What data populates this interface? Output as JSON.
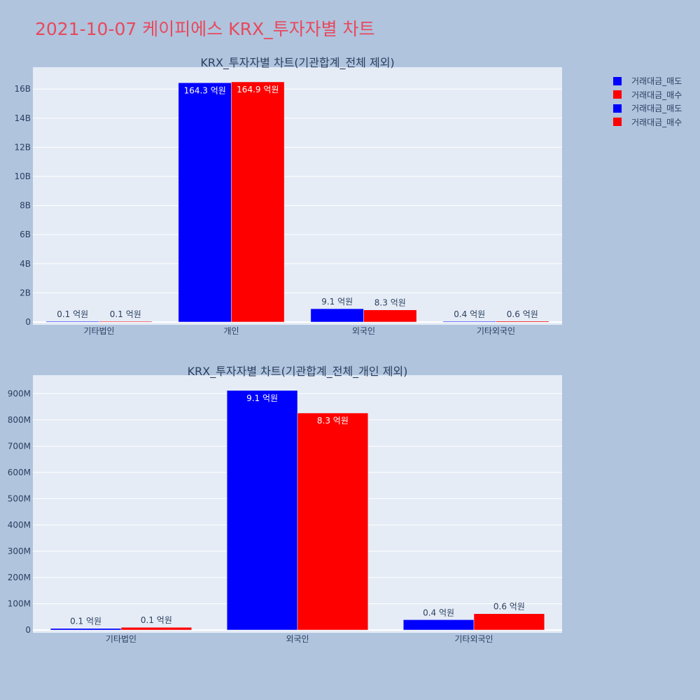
{
  "page": {
    "title": "2021-10-07 케이피에스 KRX_투자자별 차트",
    "background": "#b0c4de",
    "title_color": "#e8495c"
  },
  "legend": {
    "items": [
      {
        "label": "거래대금_매도",
        "color": "#0000ff"
      },
      {
        "label": "거래대금_매수",
        "color": "#ff0000"
      },
      {
        "label": "거래대금_매도",
        "color": "#0000ff"
      },
      {
        "label": "거래대금_매수",
        "color": "#ff0000"
      }
    ]
  },
  "chart_data": [
    {
      "type": "bar",
      "title": "KRX_투자자별 차트(기관합계_전체 제외)",
      "categories": [
        "기타법인",
        "개인",
        "외국인",
        "기타외국인"
      ],
      "series": [
        {
          "name": "거래대금_매도",
          "color": "#0000ff",
          "values": [
            10000000,
            16430000000,
            910000000,
            40000000
          ],
          "labels": [
            "0.1 억원",
            "164.3 억원",
            "9.1 억원",
            "0.4 억원"
          ]
        },
        {
          "name": "거래대금_매수",
          "color": "#ff0000",
          "values": [
            10000000,
            16490000000,
            830000000,
            60000000
          ],
          "labels": [
            "0.1 억원",
            "164.9 억원",
            "8.3 억원",
            "0.6 억원"
          ]
        }
      ],
      "ylim": [
        0,
        17500000000
      ],
      "yticks": [
        0,
        2000000000,
        4000000000,
        6000000000,
        8000000000,
        10000000000,
        12000000000,
        14000000000,
        16000000000
      ],
      "ytick_labels": [
        "0",
        "2B",
        "4B",
        "6B",
        "8B",
        "10B",
        "12B",
        "14B",
        "16B"
      ],
      "grid": true
    },
    {
      "type": "bar",
      "title": "KRX_투자자별 차트(기관합계_전체_개인 제외)",
      "categories": [
        "기타법인",
        "외국인",
        "기타외국인"
      ],
      "series": [
        {
          "name": "거래대금_매도",
          "color": "#0000ff",
          "values": [
            6000000,
            912000000,
            39000000
          ],
          "labels": [
            "0.1 억원",
            "9.1 억원",
            "0.4 억원"
          ]
        },
        {
          "name": "거래대금_매수",
          "color": "#ff0000",
          "values": [
            10000000,
            826000000,
            62000000
          ],
          "labels": [
            "0.1 억원",
            "8.3 억원",
            "0.6 억원"
          ]
        }
      ],
      "ylim": [
        0,
        970000000
      ],
      "yticks": [
        0,
        100000000,
        200000000,
        300000000,
        400000000,
        500000000,
        600000000,
        700000000,
        800000000,
        900000000
      ],
      "ytick_labels": [
        "0",
        "100M",
        "200M",
        "300M",
        "400M",
        "500M",
        "600M",
        "700M",
        "800M",
        "900M"
      ],
      "grid": true
    }
  ]
}
